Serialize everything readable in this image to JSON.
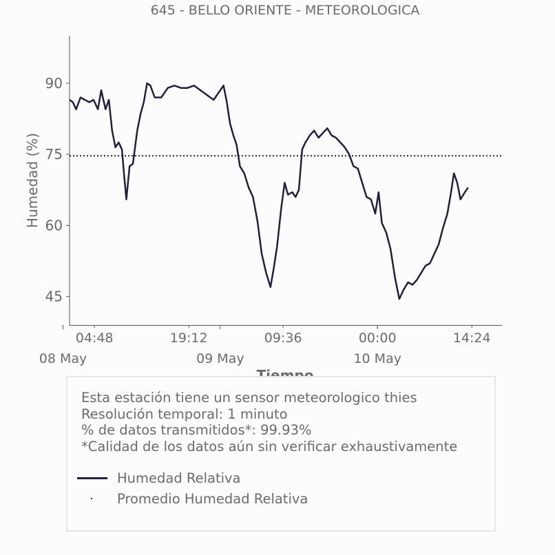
{
  "chart_data": {
    "type": "line",
    "title": "645 - BELLO ORIENTE - METEOROLOGICA",
    "xlabel": "Tiempo",
    "ylabel": "Humedad (%)",
    "y_ticks": [
      45,
      60,
      75,
      90
    ],
    "ylim": [
      39,
      100
    ],
    "time_ticks": [
      "04:48",
      "19:12",
      "09:36",
      "00:00",
      "14:24"
    ],
    "date_ticks": [
      "08 May",
      "09 May",
      "10 May"
    ],
    "x_start": "2024-05-08 01:00",
    "x_end": "2024-05-10 19:00",
    "grid": false,
    "series": [
      {
        "name": "Humedad Relativa",
        "color": "#1f1f42",
        "style": "solid",
        "points": [
          [
            "2024-05-08 01:00",
            86.5
          ],
          [
            "2024-05-08 01:30",
            86.0
          ],
          [
            "2024-05-08 02:00",
            84.5
          ],
          [
            "2024-05-08 02:40",
            87.0
          ],
          [
            "2024-05-08 03:20",
            86.5
          ],
          [
            "2024-05-08 04:00",
            86.0
          ],
          [
            "2024-05-08 04:40",
            86.5
          ],
          [
            "2024-05-08 05:20",
            84.5
          ],
          [
            "2024-05-08 05:50",
            88.5
          ],
          [
            "2024-05-08 06:30",
            84.5
          ],
          [
            "2024-05-08 07:00",
            86.5
          ],
          [
            "2024-05-08 07:30",
            80.0
          ],
          [
            "2024-05-08 08:00",
            76.5
          ],
          [
            "2024-05-08 08:30",
            77.5
          ],
          [
            "2024-05-08 09:00",
            76.0
          ],
          [
            "2024-05-08 09:20",
            70.5
          ],
          [
            "2024-05-08 09:40",
            65.5
          ],
          [
            "2024-05-08 10:10",
            72.5
          ],
          [
            "2024-05-08 10:40",
            73.0
          ],
          [
            "2024-05-08 11:20",
            80.0
          ],
          [
            "2024-05-08 11:50",
            83.5
          ],
          [
            "2024-05-08 12:20",
            86.0
          ],
          [
            "2024-05-08 12:50",
            90.0
          ],
          [
            "2024-05-08 13:20",
            89.5
          ],
          [
            "2024-05-08 14:00",
            87.0
          ],
          [
            "2024-05-08 15:00",
            87.0
          ],
          [
            "2024-05-08 16:00",
            89.0
          ],
          [
            "2024-05-08 17:00",
            89.5
          ],
          [
            "2024-05-08 18:00",
            89.0
          ],
          [
            "2024-05-08 19:00",
            89.0
          ],
          [
            "2024-05-08 20:00",
            89.5
          ],
          [
            "2024-05-08 21:00",
            88.5
          ],
          [
            "2024-05-08 22:00",
            87.5
          ],
          [
            "2024-05-08 23:00",
            86.5
          ],
          [
            "2024-05-09 00:00",
            88.5
          ],
          [
            "2024-05-09 00:30",
            89.5
          ],
          [
            "2024-05-09 01:00",
            86.0
          ],
          [
            "2024-05-09 01:30",
            81.5
          ],
          [
            "2024-05-09 02:00",
            79.0
          ],
          [
            "2024-05-09 02:30",
            77.0
          ],
          [
            "2024-05-09 03:00",
            72.5
          ],
          [
            "2024-05-09 03:40",
            71.0
          ],
          [
            "2024-05-09 04:20",
            68.0
          ],
          [
            "2024-05-09 05:00",
            66.0
          ],
          [
            "2024-05-09 05:40",
            61.0
          ],
          [
            "2024-05-09 06:20",
            54.0
          ],
          [
            "2024-05-09 07:00",
            50.0
          ],
          [
            "2024-05-09 07:40",
            47.0
          ],
          [
            "2024-05-09 08:10",
            51.0
          ],
          [
            "2024-05-09 08:40",
            55.5
          ],
          [
            "2024-05-09 09:20",
            64.0
          ],
          [
            "2024-05-09 09:50",
            69.0
          ],
          [
            "2024-05-09 10:20",
            66.5
          ],
          [
            "2024-05-09 11:00",
            67.0
          ],
          [
            "2024-05-09 11:30",
            66.0
          ],
          [
            "2024-05-09 12:00",
            67.5
          ],
          [
            "2024-05-09 12:30",
            76.0
          ],
          [
            "2024-05-09 13:00",
            77.5
          ],
          [
            "2024-05-09 13:40",
            79.0
          ],
          [
            "2024-05-09 14:20",
            80.0
          ],
          [
            "2024-05-09 15:00",
            78.5
          ],
          [
            "2024-05-09 15:40",
            79.5
          ],
          [
            "2024-05-09 16:20",
            80.5
          ],
          [
            "2024-05-09 17:00",
            79.0
          ],
          [
            "2024-05-09 17:40",
            78.5
          ],
          [
            "2024-05-09 18:20",
            77.5
          ],
          [
            "2024-05-09 19:00",
            76.5
          ],
          [
            "2024-05-09 19:40",
            75.0
          ],
          [
            "2024-05-09 20:20",
            72.5
          ],
          [
            "2024-05-09 21:00",
            72.0
          ],
          [
            "2024-05-09 21:40",
            69.0
          ],
          [
            "2024-05-09 22:20",
            66.0
          ],
          [
            "2024-05-09 23:00",
            65.5
          ],
          [
            "2024-05-09 23:40",
            62.5
          ],
          [
            "2024-05-10 00:10",
            67.0
          ],
          [
            "2024-05-10 00:40",
            60.5
          ],
          [
            "2024-05-10 01:20",
            58.5
          ],
          [
            "2024-05-10 02:00",
            55.0
          ],
          [
            "2024-05-10 02:40",
            49.0
          ],
          [
            "2024-05-10 03:20",
            44.5
          ],
          [
            "2024-05-10 04:00",
            46.5
          ],
          [
            "2024-05-10 04:40",
            48.0
          ],
          [
            "2024-05-10 05:20",
            47.5
          ],
          [
            "2024-05-10 06:00",
            48.5
          ],
          [
            "2024-05-10 06:40",
            50.0
          ],
          [
            "2024-05-10 07:20",
            51.5
          ],
          [
            "2024-05-10 08:00",
            52.0
          ],
          [
            "2024-05-10 08:40",
            54.0
          ],
          [
            "2024-05-10 09:20",
            56.0
          ],
          [
            "2024-05-10 10:00",
            59.5
          ],
          [
            "2024-05-10 10:40",
            62.5
          ],
          [
            "2024-05-10 11:10",
            66.5
          ],
          [
            "2024-05-10 11:40",
            71.0
          ],
          [
            "2024-05-10 12:10",
            69.0
          ],
          [
            "2024-05-10 12:40",
            65.5
          ],
          [
            "2024-05-10 13:20",
            67.0
          ],
          [
            "2024-05-10 13:50",
            68.0
          ]
        ]
      },
      {
        "name": "Promedio Humedad Relativa",
        "color": "#1f1f42",
        "style": "dotted",
        "value": 74.7
      }
    ]
  },
  "legend": {
    "info_lines": [
      "Esta estación tiene un sensor meteorologico thies",
      "Resolución temporal: 1 minuto",
      "% de datos transmitidos*: 99.93%",
      "*Calidad de los datos aún sin verificar exhaustivamente"
    ],
    "entries": [
      "Humedad Relativa",
      "Promedio Humedad Relativa"
    ]
  }
}
